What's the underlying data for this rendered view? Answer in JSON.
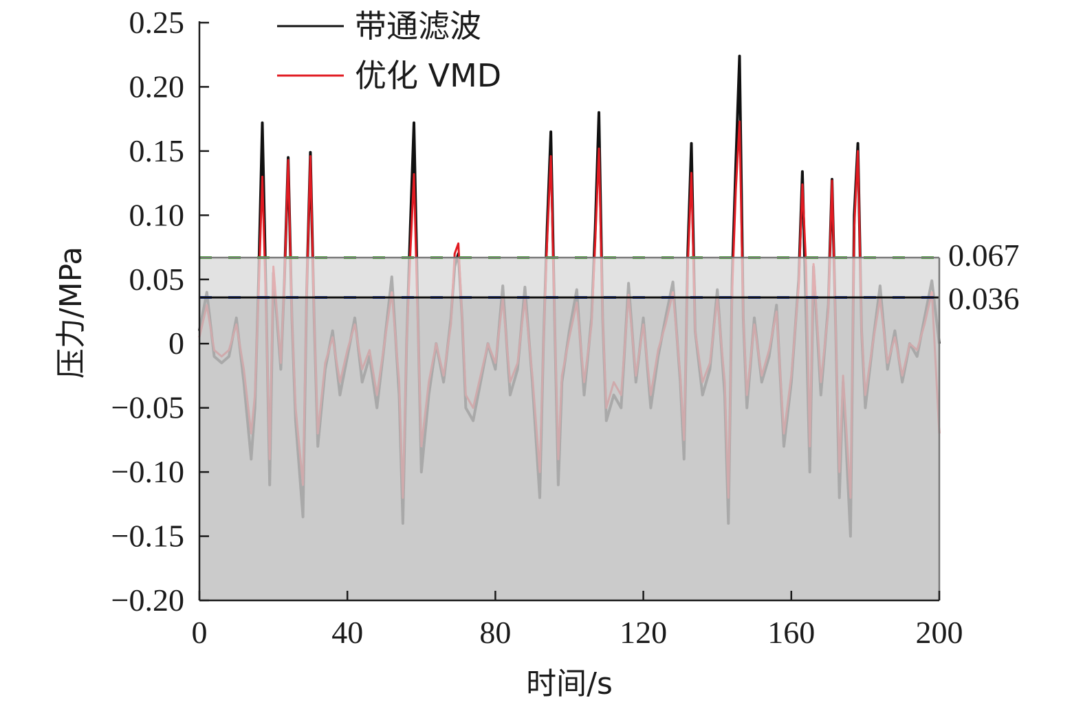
{
  "chart_data": {
    "type": "line",
    "xlabel": "时间/s",
    "ylabel": "压力/MPa",
    "xlim": [
      0,
      200
    ],
    "ylim": [
      -0.2,
      0.25
    ],
    "xticks": [
      0,
      40,
      80,
      120,
      160,
      200
    ],
    "yticks": [
      0.25,
      0.2,
      0.15,
      0.1,
      0.05,
      0,
      -0.05,
      -0.1,
      -0.15,
      -0.2
    ],
    "ytick_labels": [
      "0.25",
      "0.20",
      "0.15",
      "0.10",
      "0.05",
      "0",
      "−0.05",
      "−0.10",
      "−0.15",
      "−0.20"
    ],
    "legend_position": "top-left",
    "thresholds": [
      {
        "value": 0.067,
        "label": "0.067",
        "color": "#4caf3a"
      },
      {
        "value": 0.036,
        "label": "0.036",
        "color": "#2b4fc9"
      }
    ],
    "shading": {
      "upper_band_color": "#e2e2e2",
      "lower_region_color": "#cbcbcb"
    },
    "series": [
      {
        "name": "带通滤波",
        "color": "#111111",
        "x": [
          0,
          2,
          4,
          6,
          8,
          10,
          12,
          14,
          15,
          16,
          17,
          18,
          19,
          20,
          22,
          23,
          24,
          25,
          26,
          28,
          29,
          30,
          31,
          32,
          34,
          36,
          38,
          40,
          42,
          44,
          46,
          48,
          50,
          52,
          54,
          55,
          56,
          57,
          58,
          59,
          60,
          62,
          64,
          66,
          68,
          69,
          70,
          71,
          72,
          74,
          76,
          78,
          80,
          82,
          84,
          86,
          88,
          90,
          92,
          93,
          94,
          95,
          96,
          97,
          98,
          100,
          102,
          104,
          106,
          107,
          108,
          109,
          110,
          112,
          114,
          116,
          118,
          120,
          122,
          124,
          126,
          128,
          130,
          131,
          132,
          133,
          134,
          136,
          138,
          140,
          142,
          143,
          144,
          145,
          146,
          147,
          148,
          150,
          152,
          154,
          156,
          158,
          160,
          162,
          163,
          164,
          165,
          166,
          168,
          170,
          171,
          172,
          173,
          174,
          176,
          177,
          178,
          179,
          180,
          182,
          184,
          186,
          188,
          190,
          192,
          194,
          196,
          198,
          200
        ],
        "y": [
          0.01,
          0.04,
          -0.01,
          -0.015,
          -0.01,
          0.02,
          -0.03,
          -0.09,
          -0.05,
          0.05,
          0.172,
          0.04,
          -0.11,
          0.055,
          -0.02,
          0.05,
          0.145,
          0.02,
          -0.06,
          -0.135,
          0.04,
          0.149,
          0.02,
          -0.08,
          -0.02,
          0.01,
          -0.04,
          -0.01,
          0.02,
          -0.03,
          -0.01,
          -0.05,
          0.0,
          0.052,
          -0.04,
          -0.14,
          0.0,
          0.09,
          0.172,
          0.03,
          -0.1,
          -0.04,
          0.0,
          -0.03,
          0.02,
          0.06,
          0.07,
          0.02,
          -0.05,
          -0.06,
          -0.03,
          0.0,
          -0.02,
          0.045,
          -0.04,
          -0.02,
          0.044,
          -0.03,
          -0.12,
          0.0,
          0.09,
          0.165,
          0.02,
          -0.11,
          -0.03,
          0.01,
          0.042,
          -0.04,
          0.02,
          0.09,
          0.18,
          0.02,
          -0.06,
          -0.04,
          -0.05,
          0.047,
          -0.03,
          0.02,
          -0.05,
          -0.01,
          0.02,
          0.048,
          -0.03,
          -0.09,
          0.07,
          0.156,
          0.01,
          -0.04,
          -0.02,
          0.042,
          -0.04,
          -0.14,
          0.05,
          0.14,
          0.224,
          0.02,
          -0.05,
          0.02,
          -0.03,
          -0.01,
          0.03,
          -0.08,
          -0.03,
          0.05,
          0.134,
          0.02,
          -0.1,
          0.06,
          -0.04,
          0.03,
          0.128,
          0.01,
          -0.12,
          -0.03,
          -0.15,
          0.1,
          0.156,
          0.01,
          -0.05,
          0.0,
          0.045,
          -0.02,
          0.01,
          -0.03,
          0.0,
          -0.01,
          0.02,
          0.049,
          0.0
        ]
      },
      {
        "name": "优化 VMD",
        "color": "#e11b22",
        "x": [
          0,
          2,
          4,
          6,
          8,
          10,
          12,
          14,
          15,
          16,
          17,
          18,
          19,
          20,
          22,
          23,
          24,
          25,
          26,
          28,
          29,
          30,
          31,
          32,
          34,
          36,
          38,
          40,
          42,
          44,
          46,
          48,
          50,
          52,
          54,
          55,
          56,
          57,
          58,
          59,
          60,
          62,
          64,
          66,
          68,
          69,
          70,
          71,
          72,
          74,
          76,
          78,
          80,
          82,
          84,
          86,
          88,
          90,
          92,
          93,
          94,
          95,
          96,
          97,
          98,
          100,
          102,
          104,
          106,
          107,
          108,
          109,
          110,
          112,
          114,
          116,
          118,
          120,
          122,
          124,
          126,
          128,
          130,
          131,
          132,
          133,
          134,
          136,
          138,
          140,
          142,
          143,
          144,
          145,
          146,
          147,
          148,
          150,
          152,
          154,
          156,
          158,
          160,
          162,
          163,
          164,
          165,
          166,
          168,
          170,
          171,
          172,
          173,
          174,
          176,
          177,
          178,
          179,
          180,
          182,
          184,
          186,
          188,
          190,
          192,
          194,
          196,
          198,
          200
        ],
        "y": [
          0.005,
          0.03,
          -0.005,
          -0.01,
          -0.005,
          0.015,
          -0.02,
          -0.07,
          -0.04,
          0.04,
          0.13,
          0.03,
          -0.09,
          0.06,
          -0.015,
          0.05,
          0.143,
          0.02,
          -0.05,
          -0.11,
          0.04,
          0.146,
          0.02,
          -0.07,
          -0.015,
          0.005,
          -0.03,
          -0.005,
          0.015,
          -0.02,
          -0.005,
          -0.04,
          0.0,
          0.04,
          -0.03,
          -0.12,
          0.0,
          0.07,
          0.132,
          0.02,
          -0.08,
          -0.03,
          0.0,
          -0.025,
          0.015,
          0.07,
          0.078,
          0.02,
          -0.04,
          -0.05,
          -0.025,
          0.0,
          -0.015,
          0.035,
          -0.03,
          -0.015,
          0.035,
          -0.025,
          -0.1,
          0.0,
          0.08,
          0.146,
          0.02,
          -0.09,
          -0.025,
          0.005,
          0.032,
          -0.03,
          0.015,
          0.08,
          0.152,
          0.02,
          -0.05,
          -0.03,
          -0.04,
          0.038,
          -0.025,
          0.015,
          -0.04,
          -0.005,
          0.015,
          0.04,
          -0.025,
          -0.075,
          0.06,
          0.133,
          0.01,
          -0.03,
          -0.015,
          0.035,
          -0.03,
          -0.12,
          0.04,
          0.12,
          0.173,
          0.02,
          -0.04,
          0.015,
          -0.025,
          -0.005,
          0.025,
          -0.07,
          -0.025,
          0.045,
          0.124,
          0.06,
          -0.08,
          0.062,
          -0.03,
          0.025,
          0.127,
          0.01,
          -0.1,
          -0.025,
          -0.12,
          0.09,
          0.15,
          0.01,
          -0.04,
          0.0,
          0.035,
          -0.015,
          0.005,
          -0.025,
          0.0,
          -0.005,
          0.015,
          0.04,
          -0.07
        ]
      }
    ]
  }
}
